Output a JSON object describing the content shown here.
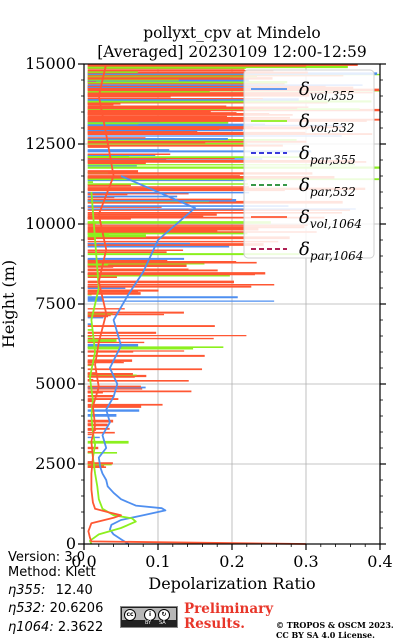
{
  "chart_data": {
    "type": "line",
    "title_line1": "pollyxt_cpv at Mindelo",
    "title_line2": "[Averaged] 20230109 12:00-12:59",
    "xlabel": "Depolarization Ratio",
    "ylabel": "Height (m)",
    "xlim": [
      0.0,
      0.4
    ],
    "ylim": [
      0,
      15000
    ],
    "x_ticks": [
      "0.0",
      "0.1",
      "0.2",
      "0.3",
      "0.4"
    ],
    "y_ticks": [
      "0",
      "2500",
      "5000",
      "7500",
      "10000",
      "12500",
      "15000"
    ],
    "grid": true,
    "legend_position": "top-right",
    "legend": [
      {
        "base": "δ",
        "sub": "vol,355",
        "color": "#4f8ff0",
        "style": "solid"
      },
      {
        "base": "δ",
        "sub": "vol,532",
        "color": "#8cf01e",
        "style": "solid"
      },
      {
        "base": "δ",
        "sub": "par,355",
        "color": "#1f1fd6",
        "style": "dashed"
      },
      {
        "base": "δ",
        "sub": "par,532",
        "color": "#1d8a2e",
        "style": "dashed"
      },
      {
        "base": "δ",
        "sub": "vol,1064",
        "color": "#ff5733",
        "style": "solid"
      },
      {
        "base": "δ",
        "sub": "par,1064",
        "color": "#a3003c",
        "style": "dashed"
      }
    ],
    "series": [
      {
        "color": "#4f8ff0",
        "points": [
          [
            0.06,
            0
          ],
          [
            0.05,
            150
          ],
          [
            0.04,
            300
          ],
          [
            0.035,
            450
          ],
          [
            0.037,
            600
          ],
          [
            0.05,
            750
          ],
          [
            0.08,
            900
          ],
          [
            0.11,
            1050
          ],
          [
            0.105,
            1120
          ],
          [
            0.07,
            1200
          ],
          [
            0.05,
            1400
          ],
          [
            0.04,
            1600
          ],
          [
            0.032,
            1800
          ],
          [
            0.03,
            2000
          ],
          [
            0.025,
            2200
          ],
          [
            0.022,
            2400
          ],
          [
            0.02,
            2700
          ],
          [
            0.03,
            3000
          ],
          [
            0.025,
            3400
          ],
          [
            0.035,
            3800
          ],
          [
            0.03,
            4200
          ],
          [
            0.04,
            4600
          ],
          [
            0.045,
            5000
          ],
          [
            0.035,
            5500
          ],
          [
            0.05,
            6200
          ],
          [
            0.04,
            7000
          ],
          [
            0.06,
            7800
          ],
          [
            0.08,
            8500
          ],
          [
            0.1,
            9500
          ],
          [
            0.15,
            10500
          ],
          [
            0.05,
            11500
          ]
        ]
      },
      {
        "color": "#8cf01e",
        "points": [
          [
            0.01,
            0
          ],
          [
            0.008,
            100
          ],
          [
            0.02,
            300
          ],
          [
            0.05,
            500
          ],
          [
            0.07,
            700
          ],
          [
            0.065,
            800
          ],
          [
            0.04,
            900
          ],
          [
            0.025,
            1100
          ],
          [
            0.02,
            1400
          ],
          [
            0.018,
            1800
          ],
          [
            0.015,
            2200
          ],
          [
            0.012,
            2700
          ],
          [
            0.015,
            3100
          ],
          [
            0.012,
            3500
          ],
          [
            0.01,
            4000
          ],
          [
            0.012,
            4500
          ],
          [
            0.008,
            5200
          ],
          [
            0.015,
            6000
          ],
          [
            0.01,
            7000
          ],
          [
            0.02,
            8000
          ],
          [
            0.015,
            9500
          ],
          [
            0.01,
            11000
          ]
        ]
      },
      {
        "color": "#ff5733",
        "points": [
          [
            0.3,
            0
          ],
          [
            0.01,
            80
          ],
          [
            0.008,
            200
          ],
          [
            0.006,
            400
          ],
          [
            0.01,
            650
          ],
          [
            0.04,
            820
          ],
          [
            0.05,
            900
          ],
          [
            0.035,
            980
          ],
          [
            0.015,
            1100
          ],
          [
            0.012,
            1300
          ],
          [
            0.01,
            1700
          ],
          [
            0.01,
            2200
          ],
          [
            0.012,
            2700
          ],
          [
            0.01,
            3200
          ],
          [
            0.015,
            3700
          ],
          [
            0.012,
            4300
          ],
          [
            0.02,
            4900
          ],
          [
            0.015,
            5600
          ],
          [
            0.02,
            6300
          ],
          [
            0.03,
            7200
          ],
          [
            0.02,
            8200
          ],
          [
            0.03,
            9200
          ],
          [
            0.02,
            10300
          ],
          [
            0.04,
            11500
          ],
          [
            0.03,
            12800
          ],
          [
            0.02,
            14000
          ],
          [
            0.03,
            15000
          ]
        ]
      }
    ],
    "spike_count_note": ""
  },
  "info": {
    "version": "Version: 3.0",
    "method": "Method: Klett",
    "eta355_label": "η355:",
    "eta355_value": "12.40",
    "eta532_label": "η532:",
    "eta532_value": "20.6206",
    "eta1064_label": "η1064:",
    "eta1064_value": "2.3622"
  },
  "badge": {
    "tag1": "BY",
    "tag2": "SA"
  },
  "preliminary": {
    "line1": "Preliminary",
    "line2": "Results."
  },
  "copyright": {
    "line1": "© TROPOS & OSCM 2023.",
    "line2": "CC BY SA 4.0 License."
  }
}
